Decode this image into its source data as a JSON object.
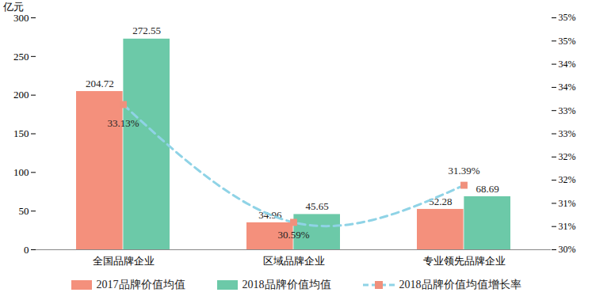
{
  "chart_data": {
    "type": "bar",
    "ylabel": "亿元",
    "categories": [
      "全国品牌企业",
      "区域品牌企业",
      "专业领先品牌企业"
    ],
    "series": [
      {
        "name": "2017品牌价值均值",
        "color": "#f4907c",
        "values": [
          204.72,
          34.96,
          52.28
        ]
      },
      {
        "name": "2018品牌价值均值",
        "color": "#6cc9a8",
        "values": [
          272.55,
          45.65,
          68.69
        ]
      },
      {
        "name": "2018品牌价值均值增长率",
        "type": "line",
        "axis": "y2",
        "color": "#8fd3e6",
        "marker": "square",
        "line_style": "dashed",
        "values": [
          33.13,
          30.59,
          31.39
        ],
        "value_labels": [
          "33.13%",
          "30.59%",
          "31.39%"
        ]
      }
    ],
    "ylim": [
      0,
      300
    ],
    "yticks": [
      0,
      50,
      100,
      150,
      200,
      250,
      300
    ],
    "y2lim": [
      30,
      35
    ],
    "y2ticks": [
      {
        "value": 30,
        "label": "30%"
      },
      {
        "value": 30.5,
        "label": "31%"
      },
      {
        "value": 31,
        "label": "31%"
      },
      {
        "value": 31.5,
        "label": "32%"
      },
      {
        "value": 32,
        "label": "32%"
      },
      {
        "value": 32.5,
        "label": "33%"
      },
      {
        "value": 33,
        "label": "33%"
      },
      {
        "value": 33.5,
        "label": "34%"
      },
      {
        "value": 34,
        "label": "34%"
      },
      {
        "value": 34.5,
        "label": "35%"
      },
      {
        "value": 35,
        "label": "35%"
      }
    ],
    "data_labels": true,
    "legend": "bottom"
  }
}
